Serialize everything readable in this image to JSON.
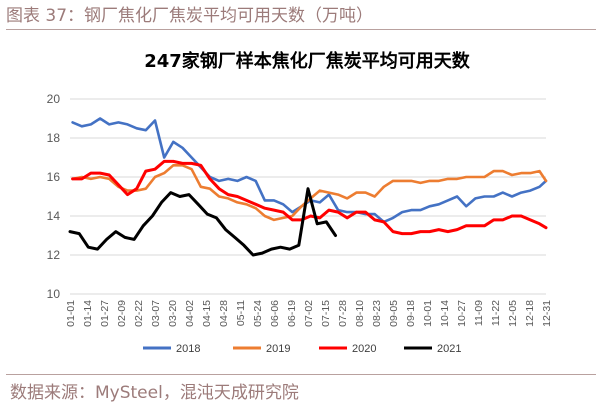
{
  "figure": {
    "caption": "图表 37：钢厂焦化厂焦炭平均可用天数（万吨）",
    "source": "数据来源：MySteel，混沌天成研究院"
  },
  "colors": {
    "2018": "#4472c4",
    "2019": "#ed7d31",
    "2020": "#ff0000",
    "2021": "#000000",
    "grid": "#d9d9d9",
    "caption": "#9c7b7a"
  },
  "chart_data": {
    "type": "line",
    "title": "247家钢厂样本焦化厂焦炭平均可用天数",
    "ylim": [
      10,
      20
    ],
    "yticks": [
      10,
      12,
      14,
      16,
      18,
      20
    ],
    "grid": "horizontal",
    "legend_position": "bottom",
    "x_tick_labels": [
      "01-01",
      "01-14",
      "01-27",
      "02-09",
      "02-22",
      "03-07",
      "03-20",
      "04-02",
      "04-15",
      "04-28",
      "05-11",
      "05-24",
      "06-06",
      "06-19",
      "07-02",
      "07-15",
      "07-28",
      "08-10",
      "08-23",
      "09-05",
      "09-18",
      "10-01",
      "10-14",
      "10-27",
      "11-09",
      "11-22",
      "12-05",
      "12-18",
      "12-31"
    ],
    "series": [
      {
        "name": "2018",
        "points": [
          [
            "01-03",
            18.8
          ],
          [
            "01-10",
            18.6
          ],
          [
            "01-17",
            18.7
          ],
          [
            "01-24",
            19.0
          ],
          [
            "01-31",
            18.7
          ],
          [
            "02-07",
            18.8
          ],
          [
            "02-14",
            18.7
          ],
          [
            "02-21",
            18.5
          ],
          [
            "02-28",
            18.4
          ],
          [
            "03-07",
            18.9
          ],
          [
            "03-14",
            17.0
          ],
          [
            "03-21",
            17.8
          ],
          [
            "03-28",
            17.5
          ],
          [
            "04-04",
            17.0
          ],
          [
            "04-11",
            16.5
          ],
          [
            "04-18",
            16.0
          ],
          [
            "04-25",
            15.8
          ],
          [
            "05-02",
            15.9
          ],
          [
            "05-09",
            15.8
          ],
          [
            "05-16",
            16.0
          ],
          [
            "05-23",
            15.8
          ],
          [
            "05-30",
            14.8
          ],
          [
            "06-06",
            14.8
          ],
          [
            "06-13",
            14.6
          ],
          [
            "06-20",
            14.2
          ],
          [
            "06-27",
            14.5
          ],
          [
            "07-04",
            14.8
          ],
          [
            "07-11",
            14.7
          ],
          [
            "07-18",
            15.1
          ],
          [
            "07-25",
            14.3
          ],
          [
            "08-01",
            14.2
          ],
          [
            "08-08",
            14.2
          ],
          [
            "08-15",
            14.1
          ],
          [
            "08-22",
            14.1
          ],
          [
            "08-29",
            13.7
          ],
          [
            "09-05",
            13.9
          ],
          [
            "09-12",
            14.2
          ],
          [
            "09-19",
            14.3
          ],
          [
            "09-26",
            14.3
          ],
          [
            "10-03",
            14.5
          ],
          [
            "10-10",
            14.6
          ],
          [
            "10-17",
            14.8
          ],
          [
            "10-24",
            15.0
          ],
          [
            "10-31",
            14.5
          ],
          [
            "11-07",
            14.9
          ],
          [
            "11-14",
            15.0
          ],
          [
            "11-21",
            15.0
          ],
          [
            "11-28",
            15.2
          ],
          [
            "12-05",
            15.0
          ],
          [
            "12-12",
            15.2
          ],
          [
            "12-19",
            15.3
          ],
          [
            "12-26",
            15.5
          ],
          [
            "12-31",
            15.8
          ]
        ]
      },
      {
        "name": "2019",
        "points": [
          [
            "01-03",
            15.9
          ],
          [
            "01-10",
            16.0
          ],
          [
            "01-17",
            15.9
          ],
          [
            "01-24",
            16.0
          ],
          [
            "01-31",
            15.9
          ],
          [
            "02-07",
            15.5
          ],
          [
            "02-14",
            15.3
          ],
          [
            "02-21",
            15.3
          ],
          [
            "02-28",
            15.4
          ],
          [
            "03-07",
            16.0
          ],
          [
            "03-14",
            16.2
          ],
          [
            "03-21",
            16.6
          ],
          [
            "03-28",
            16.6
          ],
          [
            "04-04",
            16.4
          ],
          [
            "04-11",
            15.5
          ],
          [
            "04-18",
            15.4
          ],
          [
            "04-25",
            15.0
          ],
          [
            "05-02",
            14.9
          ],
          [
            "05-09",
            14.7
          ],
          [
            "05-16",
            14.6
          ],
          [
            "05-23",
            14.4
          ],
          [
            "05-30",
            14.0
          ],
          [
            "06-06",
            13.8
          ],
          [
            "06-13",
            13.9
          ],
          [
            "06-20",
            14.0
          ],
          [
            "06-27",
            14.5
          ],
          [
            "07-04",
            14.9
          ],
          [
            "07-11",
            15.3
          ],
          [
            "07-18",
            15.2
          ],
          [
            "07-25",
            15.1
          ],
          [
            "08-01",
            14.9
          ],
          [
            "08-08",
            15.2
          ],
          [
            "08-15",
            15.2
          ],
          [
            "08-22",
            15.0
          ],
          [
            "08-29",
            15.5
          ],
          [
            "09-05",
            15.8
          ],
          [
            "09-12",
            15.8
          ],
          [
            "09-19",
            15.8
          ],
          [
            "09-26",
            15.7
          ],
          [
            "10-03",
            15.8
          ],
          [
            "10-10",
            15.8
          ],
          [
            "10-17",
            15.9
          ],
          [
            "10-24",
            15.9
          ],
          [
            "10-31",
            16.0
          ],
          [
            "11-07",
            16.0
          ],
          [
            "11-14",
            16.0
          ],
          [
            "11-21",
            16.3
          ],
          [
            "11-28",
            16.3
          ],
          [
            "12-05",
            16.1
          ],
          [
            "12-12",
            16.2
          ],
          [
            "12-19",
            16.2
          ],
          [
            "12-26",
            16.3
          ],
          [
            "12-31",
            15.8
          ]
        ]
      },
      {
        "name": "2020",
        "points": [
          [
            "01-03",
            15.9
          ],
          [
            "01-10",
            15.9
          ],
          [
            "01-17",
            16.2
          ],
          [
            "01-24",
            16.2
          ],
          [
            "01-31",
            16.1
          ],
          [
            "02-07",
            15.6
          ],
          [
            "02-14",
            15.1
          ],
          [
            "02-21",
            15.4
          ],
          [
            "02-28",
            16.3
          ],
          [
            "03-07",
            16.4
          ],
          [
            "03-14",
            16.8
          ],
          [
            "03-21",
            16.8
          ],
          [
            "03-28",
            16.7
          ],
          [
            "04-04",
            16.7
          ],
          [
            "04-11",
            16.6
          ],
          [
            "04-18",
            15.9
          ],
          [
            "04-25",
            15.4
          ],
          [
            "05-02",
            15.1
          ],
          [
            "05-09",
            15.0
          ],
          [
            "05-16",
            14.8
          ],
          [
            "05-23",
            14.6
          ],
          [
            "05-30",
            14.4
          ],
          [
            "06-06",
            14.3
          ],
          [
            "06-13",
            14.2
          ],
          [
            "06-20",
            13.8
          ],
          [
            "06-27",
            13.8
          ],
          [
            "07-04",
            14.0
          ],
          [
            "07-11",
            13.9
          ],
          [
            "07-18",
            14.3
          ],
          [
            "07-25",
            14.2
          ],
          [
            "08-01",
            13.9
          ],
          [
            "08-08",
            14.2
          ],
          [
            "08-15",
            14.2
          ],
          [
            "08-22",
            13.8
          ],
          [
            "08-29",
            13.7
          ],
          [
            "09-05",
            13.2
          ],
          [
            "09-12",
            13.1
          ],
          [
            "09-19",
            13.1
          ],
          [
            "09-26",
            13.2
          ],
          [
            "10-03",
            13.2
          ],
          [
            "10-10",
            13.3
          ],
          [
            "10-17",
            13.2
          ],
          [
            "10-24",
            13.3
          ],
          [
            "10-31",
            13.5
          ],
          [
            "11-07",
            13.5
          ],
          [
            "11-14",
            13.5
          ],
          [
            "11-21",
            13.8
          ],
          [
            "11-28",
            13.8
          ],
          [
            "12-05",
            14.0
          ],
          [
            "12-12",
            14.0
          ],
          [
            "12-19",
            13.8
          ],
          [
            "12-26",
            13.6
          ],
          [
            "12-31",
            13.4
          ]
        ]
      },
      {
        "name": "2021",
        "points": [
          [
            "01-01",
            13.2
          ],
          [
            "01-08",
            13.1
          ],
          [
            "01-15",
            12.4
          ],
          [
            "01-22",
            12.3
          ],
          [
            "01-29",
            12.8
          ],
          [
            "02-05",
            13.2
          ],
          [
            "02-12",
            12.9
          ],
          [
            "02-19",
            12.8
          ],
          [
            "02-26",
            13.5
          ],
          [
            "03-05",
            14.0
          ],
          [
            "03-12",
            14.7
          ],
          [
            "03-19",
            15.2
          ],
          [
            "03-26",
            15.0
          ],
          [
            "04-02",
            15.1
          ],
          [
            "04-09",
            14.6
          ],
          [
            "04-16",
            14.1
          ],
          [
            "04-23",
            13.9
          ],
          [
            "04-30",
            13.3
          ],
          [
            "05-07",
            12.9
          ],
          [
            "05-14",
            12.5
          ],
          [
            "05-21",
            12.0
          ],
          [
            "05-28",
            12.1
          ],
          [
            "06-04",
            12.3
          ],
          [
            "06-11",
            12.4
          ],
          [
            "06-18",
            12.3
          ],
          [
            "06-25",
            12.5
          ],
          [
            "07-02",
            15.4
          ],
          [
            "07-09",
            13.6
          ],
          [
            "07-16",
            13.7
          ],
          [
            "07-23",
            13.0
          ]
        ]
      }
    ]
  }
}
